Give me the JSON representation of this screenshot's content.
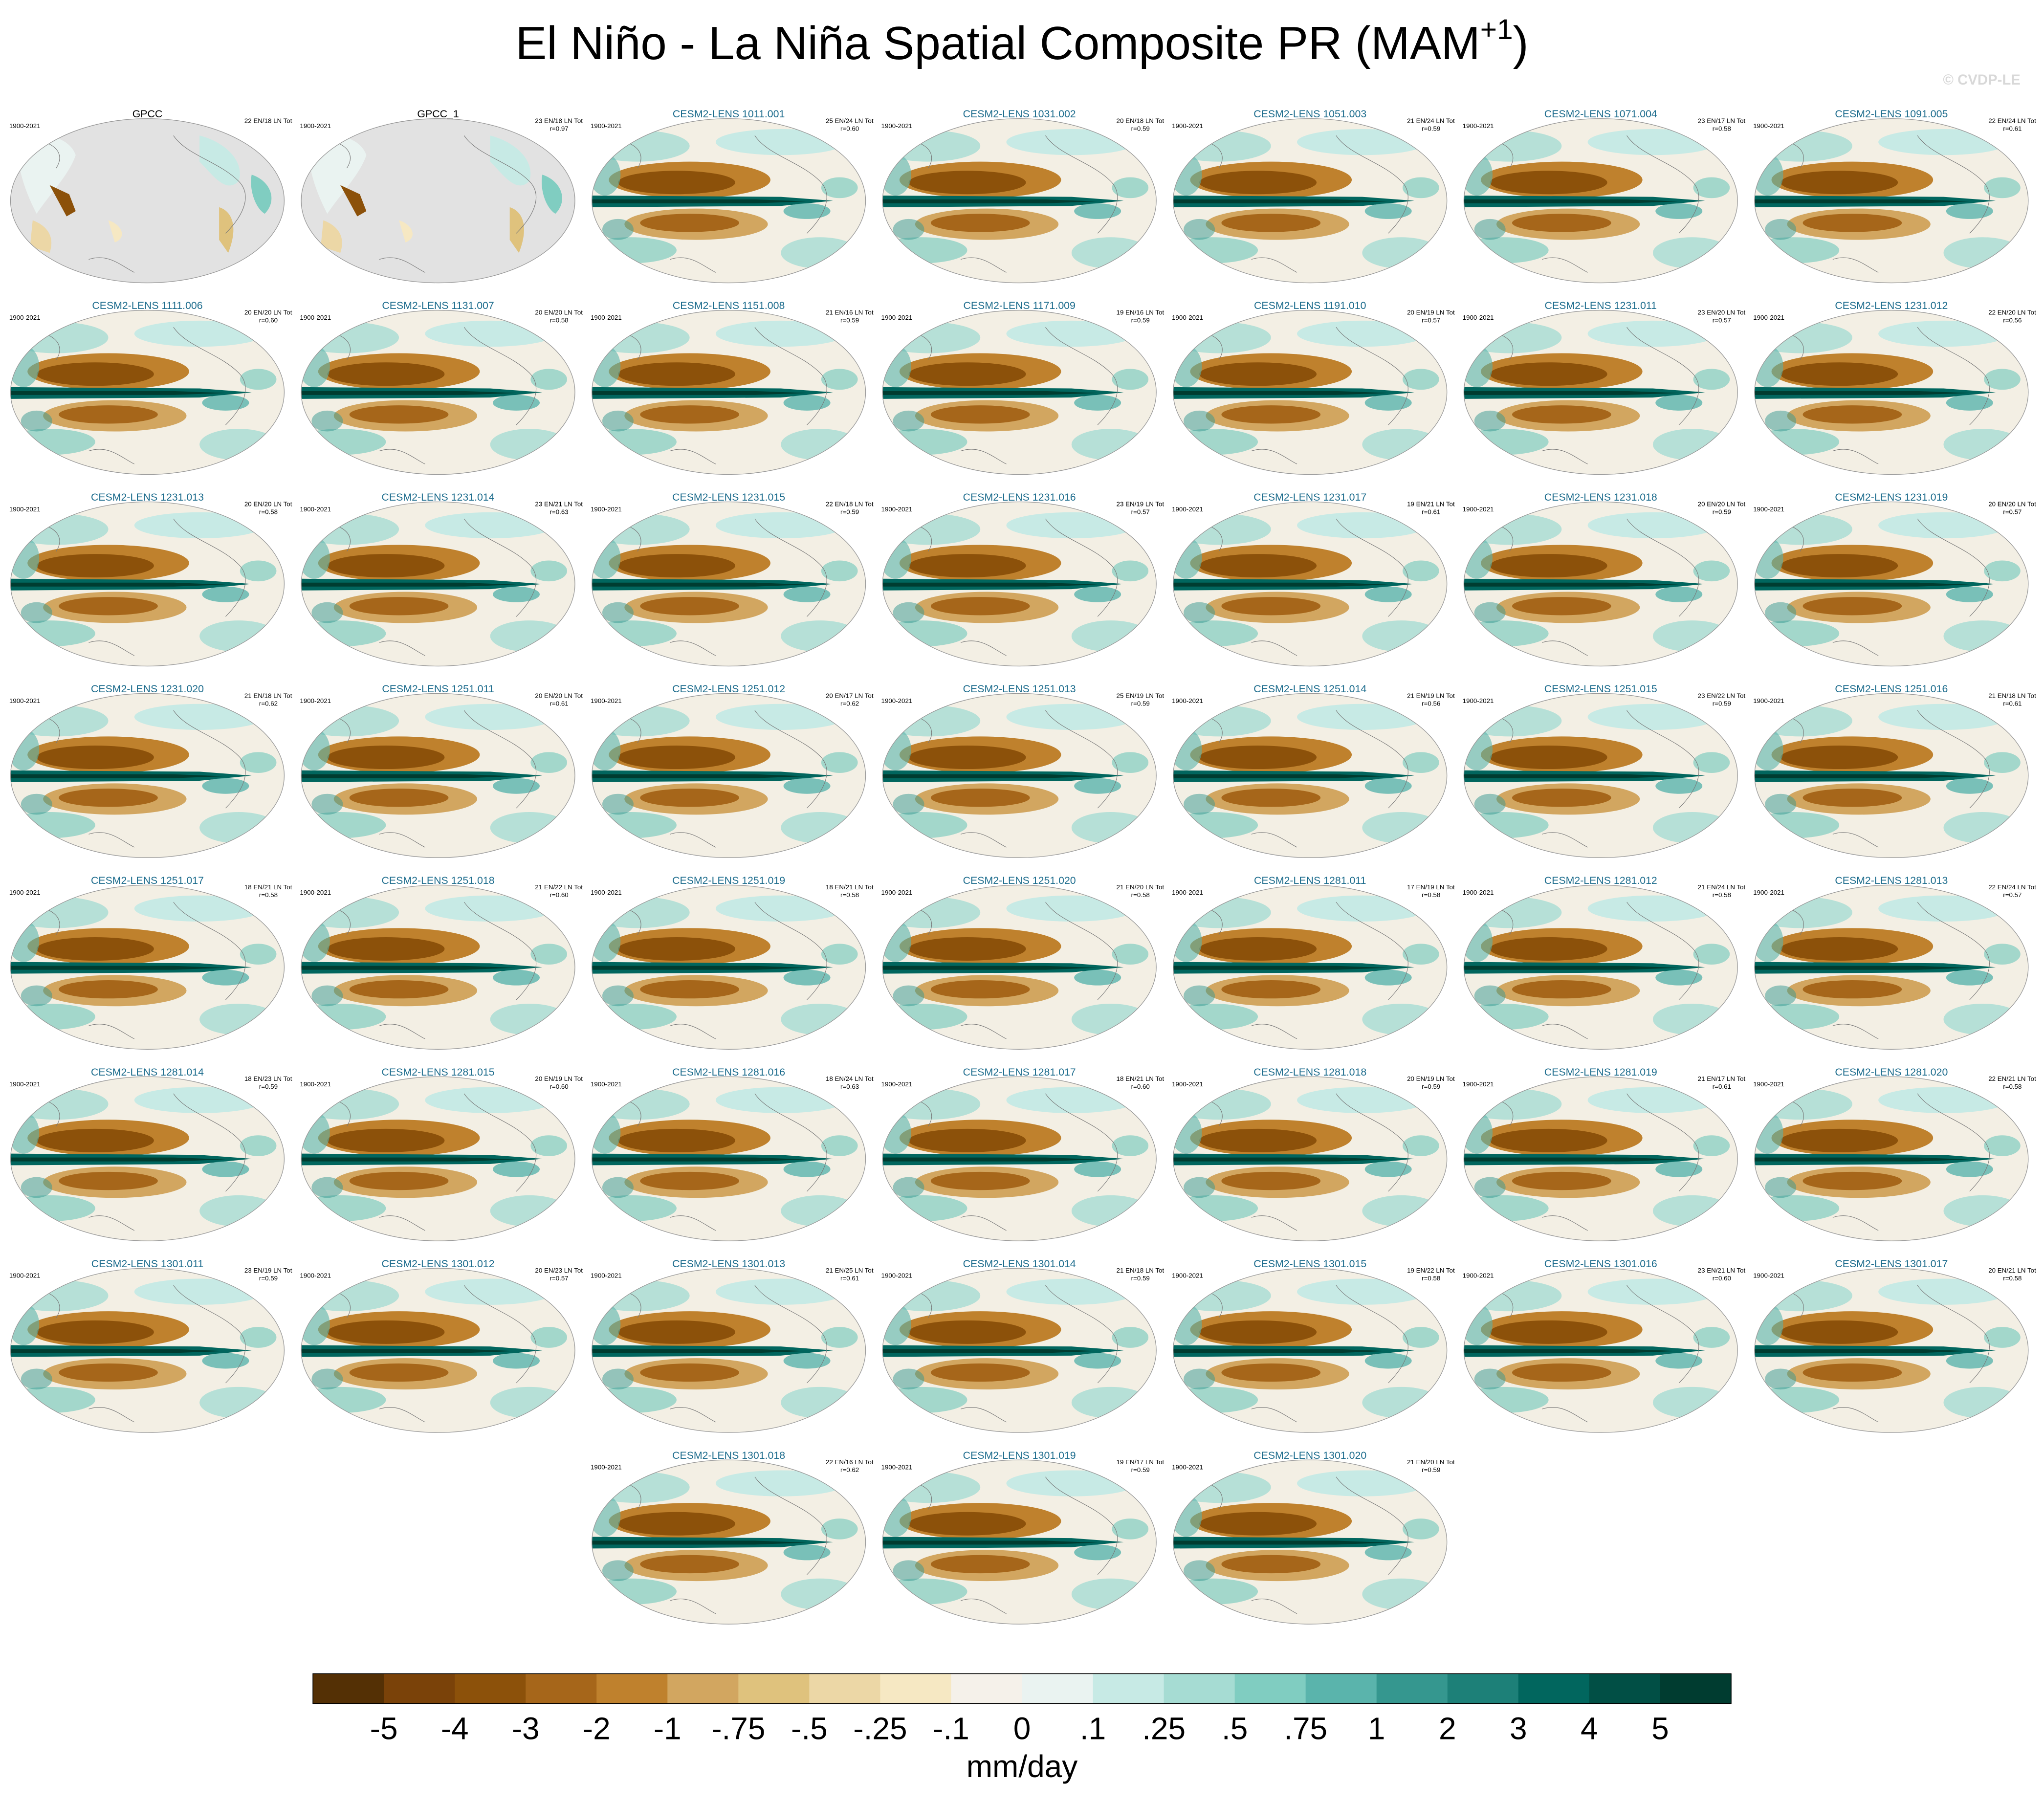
{
  "title": {
    "main": "El Niño - La Niña Spatial Composite PR (MAM",
    "superscript": "+1",
    "close": ")"
  },
  "watermark": "© CVDP-LE",
  "panels": [
    {
      "name": "GPCC",
      "period": "1900-2021",
      "counts": "22 EN/18 LN Tot"
    },
    {
      "name": "GPCC_1",
      "period": "1900-2021",
      "counts": "23 EN/18 LN Tot",
      "r": "r=0.97"
    },
    {
      "name": "CESM2-LENS 1011.001",
      "period": "1900-2021",
      "counts": "25 EN/24 LN Tot",
      "r": "r=0.60"
    },
    {
      "name": "CESM2-LENS 1031.002",
      "period": "1900-2021",
      "counts": "20 EN/18 LN Tot",
      "r": "r=0.59"
    },
    {
      "name": "CESM2-LENS 1051.003",
      "period": "1900-2021",
      "counts": "21 EN/24 LN Tot",
      "r": "r=0.59"
    },
    {
      "name": "CESM2-LENS 1071.004",
      "period": "1900-2021",
      "counts": "23 EN/17 LN Tot",
      "r": "r=0.58"
    },
    {
      "name": "CESM2-LENS 1091.005",
      "period": "1900-2021",
      "counts": "22 EN/24 LN Tot",
      "r": "r=0.61"
    },
    {
      "name": "CESM2-LENS 1111.006",
      "period": "1900-2021",
      "counts": "20 EN/20 LN Tot",
      "r": "r=0.60"
    },
    {
      "name": "CESM2-LENS 1131.007",
      "period": "1900-2021",
      "counts": "20 EN/20 LN Tot",
      "r": "r=0.58"
    },
    {
      "name": "CESM2-LENS 1151.008",
      "period": "1900-2021",
      "counts": "21 EN/16 LN Tot",
      "r": "r=0.59"
    },
    {
      "name": "CESM2-LENS 1171.009",
      "period": "1900-2021",
      "counts": "19 EN/16 LN Tot",
      "r": "r=0.59"
    },
    {
      "name": "CESM2-LENS 1191.010",
      "period": "1900-2021",
      "counts": "20 EN/19 LN Tot",
      "r": "r=0.57"
    },
    {
      "name": "CESM2-LENS 1231.011",
      "period": "1900-2021",
      "counts": "23 EN/20 LN Tot",
      "r": "r=0.57"
    },
    {
      "name": "CESM2-LENS 1231.012",
      "period": "1900-2021",
      "counts": "22 EN/20 LN Tot",
      "r": "r=0.56"
    },
    {
      "name": "CESM2-LENS 1231.013",
      "period": "1900-2021",
      "counts": "20 EN/20 LN Tot",
      "r": "r=0.58"
    },
    {
      "name": "CESM2-LENS 1231.014",
      "period": "1900-2021",
      "counts": "23 EN/21 LN Tot",
      "r": "r=0.63"
    },
    {
      "name": "CESM2-LENS 1231.015",
      "period": "1900-2021",
      "counts": "22 EN/18 LN Tot",
      "r": "r=0.59"
    },
    {
      "name": "CESM2-LENS 1231.016",
      "period": "1900-2021",
      "counts": "23 EN/19 LN Tot",
      "r": "r=0.57"
    },
    {
      "name": "CESM2-LENS 1231.017",
      "period": "1900-2021",
      "counts": "19 EN/21 LN Tot",
      "r": "r=0.61"
    },
    {
      "name": "CESM2-LENS 1231.018",
      "period": "1900-2021",
      "counts": "20 EN/20 LN Tot",
      "r": "r=0.59"
    },
    {
      "name": "CESM2-LENS 1231.019",
      "period": "1900-2021",
      "counts": "20 EN/20 LN Tot",
      "r": "r=0.57"
    },
    {
      "name": "CESM2-LENS 1231.020",
      "period": "1900-2021",
      "counts": "21 EN/18 LN Tot",
      "r": "r=0.62"
    },
    {
      "name": "CESM2-LENS 1251.011",
      "period": "1900-2021",
      "counts": "20 EN/20 LN Tot",
      "r": "r=0.61"
    },
    {
      "name": "CESM2-LENS 1251.012",
      "period": "1900-2021",
      "counts": "20 EN/17 LN Tot",
      "r": "r=0.62"
    },
    {
      "name": "CESM2-LENS 1251.013",
      "period": "1900-2021",
      "counts": "25 EN/19 LN Tot",
      "r": "r=0.59"
    },
    {
      "name": "CESM2-LENS 1251.014",
      "period": "1900-2021",
      "counts": "21 EN/19 LN Tot",
      "r": "r=0.56"
    },
    {
      "name": "CESM2-LENS 1251.015",
      "period": "1900-2021",
      "counts": "23 EN/22 LN Tot",
      "r": "r=0.59"
    },
    {
      "name": "CESM2-LENS 1251.016",
      "period": "1900-2021",
      "counts": "21 EN/18 LN Tot",
      "r": "r=0.61"
    },
    {
      "name": "CESM2-LENS 1251.017",
      "period": "1900-2021",
      "counts": "18 EN/21 LN Tot",
      "r": "r=0.58"
    },
    {
      "name": "CESM2-LENS 1251.018",
      "period": "1900-2021",
      "counts": "21 EN/22 LN Tot",
      "r": "r=0.60"
    },
    {
      "name": "CESM2-LENS 1251.019",
      "period": "1900-2021",
      "counts": "18 EN/21 LN Tot",
      "r": "r=0.58"
    },
    {
      "name": "CESM2-LENS 1251.020",
      "period": "1900-2021",
      "counts": "21 EN/20 LN Tot",
      "r": "r=0.58"
    },
    {
      "name": "CESM2-LENS 1281.011",
      "period": "1900-2021",
      "counts": "17 EN/19 LN Tot",
      "r": "r=0.58"
    },
    {
      "name": "CESM2-LENS 1281.012",
      "period": "1900-2021",
      "counts": "21 EN/24 LN Tot",
      "r": "r=0.58"
    },
    {
      "name": "CESM2-LENS 1281.013",
      "period": "1900-2021",
      "counts": "22 EN/24 LN Tot",
      "r": "r=0.57"
    },
    {
      "name": "CESM2-LENS 1281.014",
      "period": "1900-2021",
      "counts": "18 EN/23 LN Tot",
      "r": "r=0.59"
    },
    {
      "name": "CESM2-LENS 1281.015",
      "period": "1900-2021",
      "counts": "20 EN/19 LN Tot",
      "r": "r=0.60"
    },
    {
      "name": "CESM2-LENS 1281.016",
      "period": "1900-2021",
      "counts": "18 EN/24 LN Tot",
      "r": "r=0.63"
    },
    {
      "name": "CESM2-LENS 1281.017",
      "period": "1900-2021",
      "counts": "18 EN/21 LN Tot",
      "r": "r=0.60"
    },
    {
      "name": "CESM2-LENS 1281.018",
      "period": "1900-2021",
      "counts": "20 EN/19 LN Tot",
      "r": "r=0.59"
    },
    {
      "name": "CESM2-LENS 1281.019",
      "period": "1900-2021",
      "counts": "21 EN/17 LN Tot",
      "r": "r=0.61"
    },
    {
      "name": "CESM2-LENS 1281.020",
      "period": "1900-2021",
      "counts": "22 EN/21 LN Tot",
      "r": "r=0.58"
    },
    {
      "name": "CESM2-LENS 1301.011",
      "period": "1900-2021",
      "counts": "23 EN/19 LN Tot",
      "r": "r=0.59"
    },
    {
      "name": "CESM2-LENS 1301.012",
      "period": "1900-2021",
      "counts": "20 EN/23 LN Tot",
      "r": "r=0.57"
    },
    {
      "name": "CESM2-LENS 1301.013",
      "period": "1900-2021",
      "counts": "21 EN/25 LN Tot",
      "r": "r=0.61"
    },
    {
      "name": "CESM2-LENS 1301.014",
      "period": "1900-2021",
      "counts": "21 EN/18 LN Tot",
      "r": "r=0.59"
    },
    {
      "name": "CESM2-LENS 1301.015",
      "period": "1900-2021",
      "counts": "19 EN/22 LN Tot",
      "r": "r=0.58"
    },
    {
      "name": "CESM2-LENS 1301.016",
      "period": "1900-2021",
      "counts": "23 EN/21 LN Tot",
      "r": "r=0.60"
    },
    {
      "name": "CESM2-LENS 1301.017",
      "period": "1900-2021",
      "counts": "20 EN/21 LN Tot",
      "r": "r=0.58"
    },
    {
      "name": "CESM2-LENS 1301.018",
      "period": "1900-2021",
      "counts": "22 EN/16 LN Tot",
      "r": "r=0.62"
    },
    {
      "name": "CESM2-LENS 1301.019",
      "period": "1900-2021",
      "counts": "19 EN/17 LN Tot",
      "r": "r=0.59"
    },
    {
      "name": "CESM2-LENS 1301.020",
      "period": "1900-2021",
      "counts": "21 EN/20 LN Tot",
      "r": "r=0.59"
    }
  ],
  "colorbar": {
    "colors": [
      "#543005",
      "#7a4209",
      "#8c510a",
      "#a6661a",
      "#bf812d",
      "#d2a660",
      "#dfc27d",
      "#ecd7a6",
      "#f6e8c3",
      "#f5f1ea",
      "#eaf3f1",
      "#c7eae5",
      "#a6dcd3",
      "#80cdc1",
      "#5ab4ac",
      "#35978f",
      "#1d8078",
      "#01665e",
      "#014f45",
      "#003c30"
    ],
    "labels": [
      "-5",
      "-4",
      "-3",
      "-2",
      "-1",
      "-.75",
      "-.5",
      "-.25",
      "-.1",
      "0",
      ".1",
      ".25",
      ".5",
      ".75",
      "1",
      "2",
      "3",
      "4",
      "5"
    ],
    "unit": "mm/day"
  }
}
